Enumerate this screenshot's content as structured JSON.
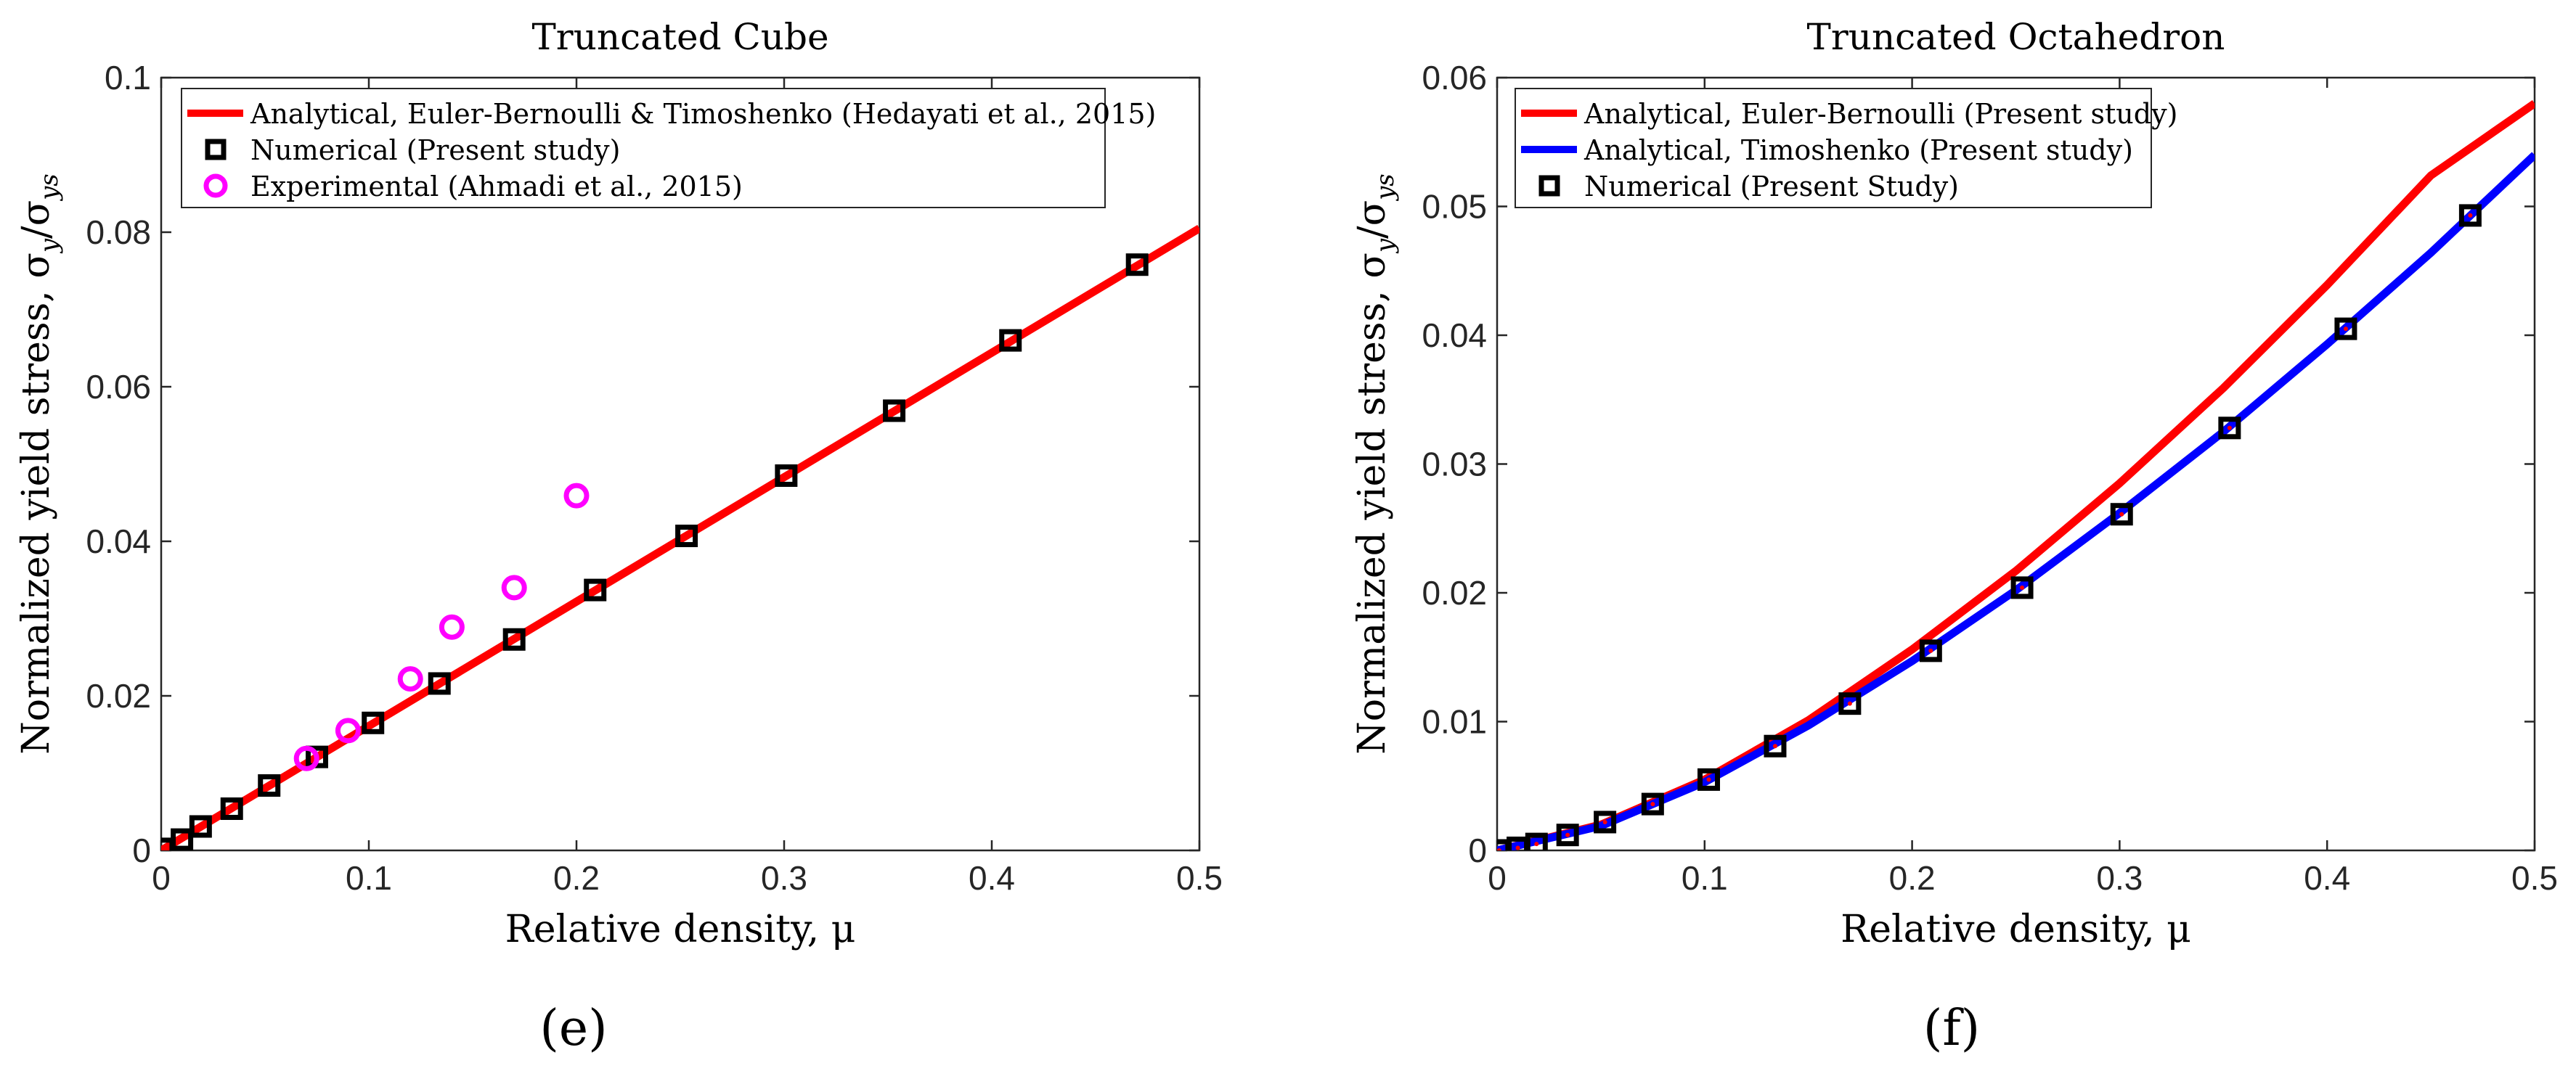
{
  "chart_data": [
    {
      "type": "line",
      "panel_label": "(e)",
      "title": "Truncated Cube",
      "xlabel": "Relative density, μ",
      "ylabel": "Normalized yield stress, σ",
      "ylabel_sub": "y",
      "ylabel_mid": "/σ",
      "ylabel_sub2": "ys",
      "xlim": [
        0,
        0.5
      ],
      "ylim": [
        0,
        0.1
      ],
      "xticks": [
        0,
        0.1,
        0.2,
        0.3,
        0.4,
        0.5
      ],
      "xtick_labels": [
        "0",
        "0.1",
        "0.2",
        "0.3",
        "0.4",
        "0.5"
      ],
      "yticks": [
        0,
        0.02,
        0.04,
        0.06,
        0.08,
        0.1
      ],
      "ytick_labels": [
        "0",
        "0.02",
        "0.04",
        "0.06",
        "0.08",
        "0.1"
      ],
      "legend_position": "top-left",
      "series": [
        {
          "name": "Analytical, Euler-Bernoulli & Timoshenko (Hedayati et al., 2015)",
          "kind": "line",
          "color": "#ff0000",
          "x": [
            0,
            0.1,
            0.2,
            0.3,
            0.4,
            0.5
          ],
          "y": [
            0,
            0.0161,
            0.0322,
            0.0483,
            0.0644,
            0.0805
          ]
        },
        {
          "name": "Numerical (Present study)",
          "kind": "square",
          "color": "#000000",
          "x": [
            0.001,
            0.01,
            0.019,
            0.034,
            0.052,
            0.075,
            0.102,
            0.134,
            0.17,
            0.209,
            0.253,
            0.301,
            0.353,
            0.409,
            0.47
          ],
          "y": [
            0.0002,
            0.0014,
            0.0031,
            0.0054,
            0.0084,
            0.0121,
            0.0165,
            0.0216,
            0.0273,
            0.0337,
            0.0407,
            0.0485,
            0.0569,
            0.066,
            0.0758
          ]
        },
        {
          "name": "Experimental (Ahmadi et al., 2015)",
          "kind": "circle",
          "color": "#ff00ff",
          "x": [
            0.07,
            0.09,
            0.12,
            0.14,
            0.17,
            0.2
          ],
          "y": [
            0.0119,
            0.0155,
            0.0222,
            0.0289,
            0.034,
            0.0459
          ]
        }
      ]
    },
    {
      "type": "line",
      "panel_label": "(f)",
      "title": "Truncated Octahedron",
      "xlabel": "Relative density, μ",
      "ylabel": "Normalized yield stress, σ",
      "ylabel_sub": "y",
      "ylabel_mid": "/σ",
      "ylabel_sub2": "ys",
      "xlim": [
        0,
        0.5
      ],
      "ylim": [
        0,
        0.06
      ],
      "xticks": [
        0,
        0.1,
        0.2,
        0.3,
        0.4,
        0.5
      ],
      "xtick_labels": [
        "0",
        "0.1",
        "0.2",
        "0.3",
        "0.4",
        "0.5"
      ],
      "yticks": [
        0,
        0.01,
        0.02,
        0.03,
        0.04,
        0.05,
        0.06
      ],
      "ytick_labels": [
        "0",
        "0.01",
        "0.02",
        "0.03",
        "0.04",
        "0.05",
        "0.06"
      ],
      "legend_position": "top-left",
      "series": [
        {
          "name": "Analytical, Euler-Bernoulli (Present study)",
          "kind": "line",
          "color": "#ff0000",
          "x": [
            0,
            0.05,
            0.1,
            0.15,
            0.2,
            0.25,
            0.3,
            0.35,
            0.4,
            0.45,
            0.5
          ],
          "y": [
            0,
            0.002,
            0.0055,
            0.0101,
            0.0156,
            0.0217,
            0.0285,
            0.0359,
            0.0439,
            0.0524,
            0.058
          ]
        },
        {
          "name": "Analytical, Timoshenko (Present study)",
          "kind": "line",
          "color": "#0000ff",
          "x": [
            0,
            0.05,
            0.1,
            0.15,
            0.2,
            0.25,
            0.3,
            0.35,
            0.4,
            0.45,
            0.5
          ],
          "y": [
            0,
            0.0019,
            0.0053,
            0.0097,
            0.0147,
            0.0202,
            0.0262,
            0.0325,
            0.0393,
            0.0464,
            0.054
          ]
        },
        {
          "name": "Numerical (Present Study)",
          "kind": "square",
          "color": "#000000",
          "x": [
            0.001,
            0.01,
            0.019,
            0.034,
            0.052,
            0.075,
            0.102,
            0.134,
            0.17,
            0.209,
            0.253,
            0.301,
            0.353,
            0.409,
            0.469
          ],
          "y": [
            0,
            0.0002,
            0.0005,
            0.0012,
            0.0022,
            0.0036,
            0.0055,
            0.0081,
            0.0114,
            0.0155,
            0.0204,
            0.0261,
            0.0328,
            0.0405,
            0.0493
          ]
        }
      ]
    }
  ]
}
